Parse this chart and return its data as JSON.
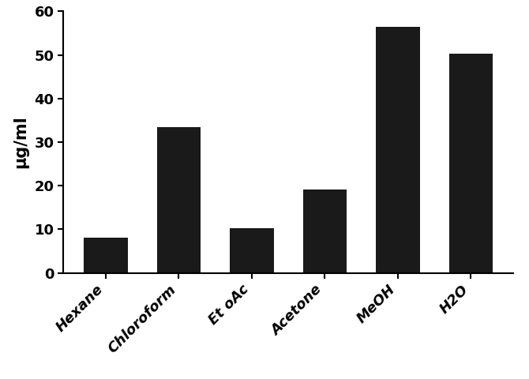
{
  "categories": [
    "Hexane",
    "Chloroform",
    "Et oAc",
    "Acetone",
    "MeOH",
    "H2O"
  ],
  "values": [
    8.0,
    33.5,
    10.2,
    19.2,
    56.5,
    50.3
  ],
  "bar_color": "#1a1a1a",
  "ylabel": "μg/ml",
  "ylim": [
    0,
    60
  ],
  "yticks": [
    0,
    10,
    20,
    30,
    40,
    50,
    60
  ],
  "bar_width": 0.6,
  "ylabel_fontsize": 15,
  "tick_fontsize": 13,
  "background_color": "#ffffff"
}
